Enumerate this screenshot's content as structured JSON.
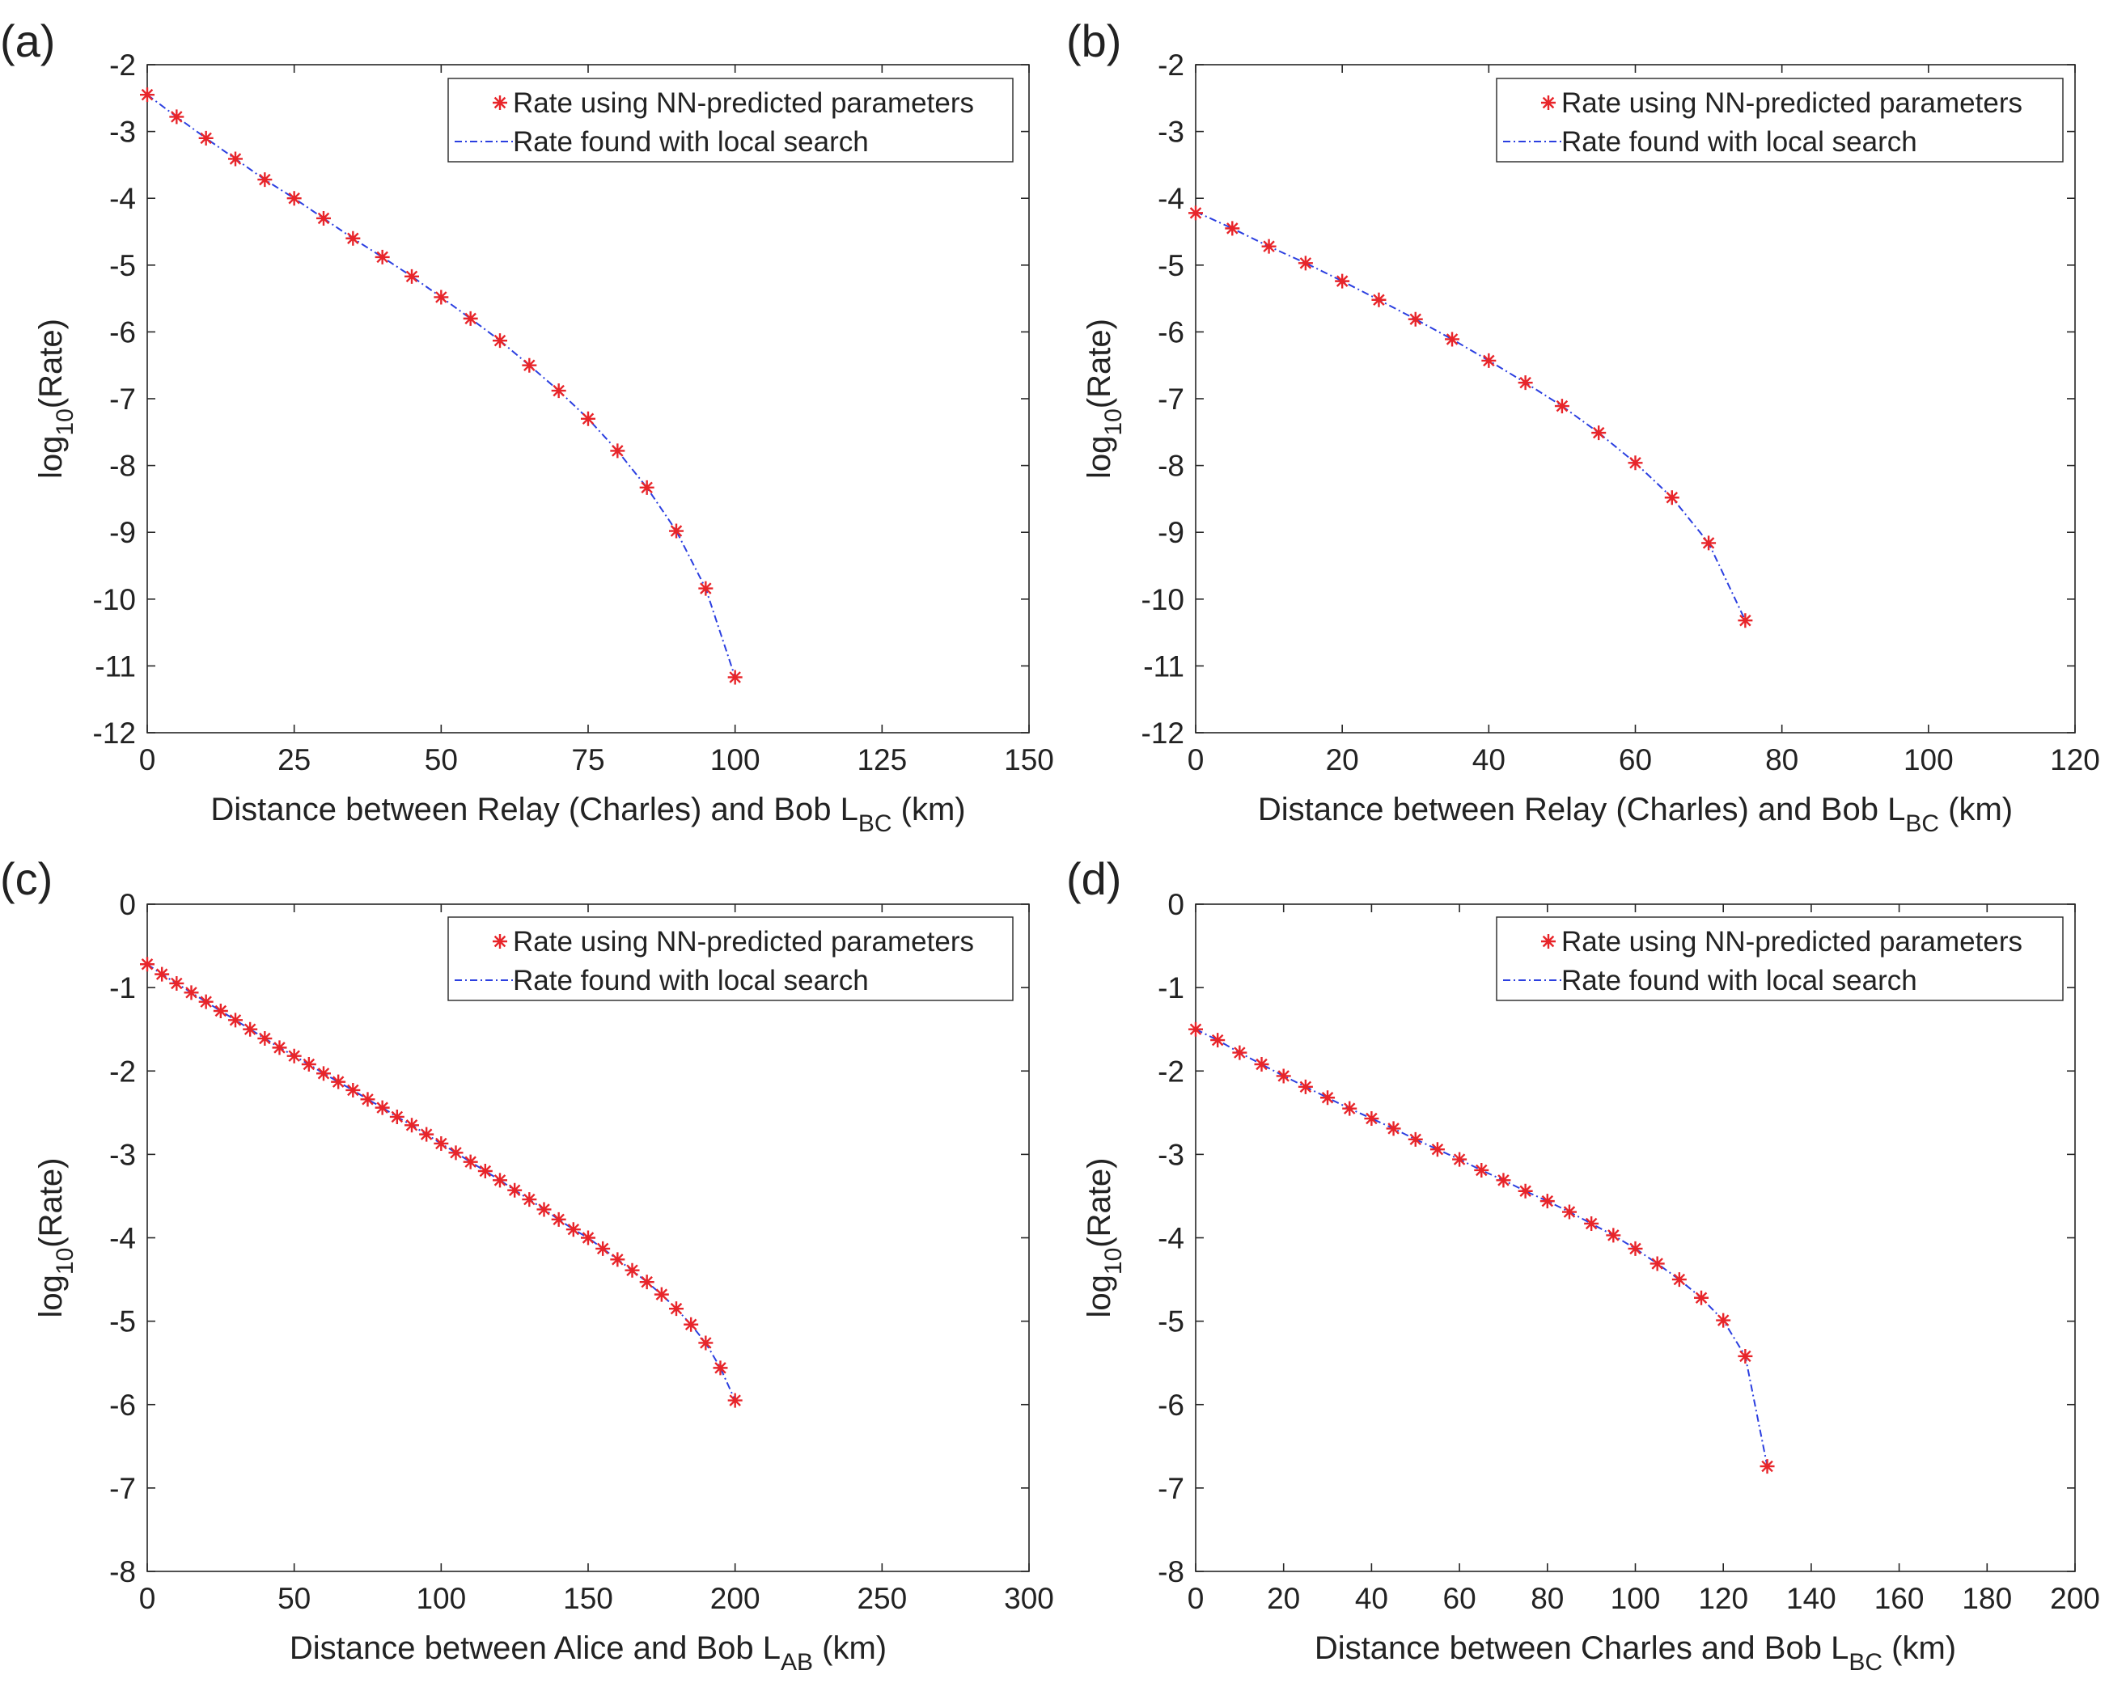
{
  "colors": {
    "nn_marker": "#e8252a",
    "local_line": "#2b3fe0",
    "axis": "#262626",
    "text": "#222222"
  },
  "chart_data": [
    {
      "type": "line",
      "panel": "(a)",
      "xlabel": "Distance between Relay (Charles) and Bob L",
      "xlabel_sub": "BC",
      "xlabel_unit": " (km)",
      "ylabel": "log",
      "ylabel_sub": "10",
      "ylabel_rest": "(Rate)",
      "xlim": [
        0,
        150
      ],
      "ylim": [
        -12,
        -2
      ],
      "xticks": [
        0,
        25,
        50,
        75,
        100,
        125,
        150
      ],
      "yticks": [
        -2,
        -3,
        -4,
        -5,
        -6,
        -7,
        -8,
        -9,
        -10,
        -11,
        -12
      ],
      "legend_position": "top-right",
      "series": [
        {
          "name": "Rate using NN-predicted parameters",
          "style": "marker-asterisk",
          "x": [
            0,
            5,
            10,
            15,
            20,
            25,
            30,
            35,
            40,
            45,
            50,
            55,
            60,
            65,
            70,
            75,
            80,
            85,
            90,
            95,
            100
          ],
          "y": [
            -2.45,
            -2.78,
            -3.1,
            -3.41,
            -3.72,
            -4.0,
            -4.3,
            -4.6,
            -4.88,
            -5.17,
            -5.48,
            -5.8,
            -6.13,
            -6.5,
            -6.88,
            -7.3,
            -7.78,
            -8.33,
            -8.98,
            -9.84,
            -11.17
          ]
        },
        {
          "name": "Rate found with local search",
          "style": "dash-dot-line",
          "x": [
            0,
            5,
            10,
            15,
            20,
            25,
            30,
            35,
            40,
            45,
            50,
            55,
            60,
            65,
            70,
            75,
            80,
            85,
            90,
            95,
            100
          ],
          "y": [
            -2.45,
            -2.78,
            -3.1,
            -3.41,
            -3.72,
            -4.0,
            -4.3,
            -4.6,
            -4.88,
            -5.17,
            -5.48,
            -5.8,
            -6.13,
            -6.5,
            -6.88,
            -7.3,
            -7.78,
            -8.33,
            -8.98,
            -9.84,
            -11.17
          ]
        }
      ]
    },
    {
      "type": "line",
      "panel": "(b)",
      "xlabel": "Distance between Relay (Charles) and Bob L",
      "xlabel_sub": "BC",
      "xlabel_unit": " (km)",
      "ylabel": "log",
      "ylabel_sub": "10",
      "ylabel_rest": "(Rate)",
      "xlim": [
        0,
        120
      ],
      "ylim": [
        -12,
        -2
      ],
      "xticks": [
        0,
        20,
        40,
        60,
        80,
        100,
        120
      ],
      "yticks": [
        -2,
        -3,
        -4,
        -5,
        -6,
        -7,
        -8,
        -9,
        -10,
        -11,
        -12
      ],
      "legend_position": "top-right",
      "series": [
        {
          "name": "Rate using NN-predicted parameters",
          "style": "marker-asterisk",
          "x": [
            0,
            5,
            10,
            15,
            20,
            25,
            30,
            35,
            40,
            45,
            50,
            55,
            60,
            65,
            70,
            75
          ],
          "y": [
            -4.22,
            -4.45,
            -4.72,
            -4.97,
            -5.24,
            -5.52,
            -5.81,
            -6.11,
            -6.43,
            -6.76,
            -7.11,
            -7.51,
            -7.96,
            -8.48,
            -9.16,
            -10.32
          ]
        },
        {
          "name": "Rate found with local search",
          "style": "dash-dot-line",
          "x": [
            0,
            5,
            10,
            15,
            20,
            25,
            30,
            35,
            40,
            45,
            50,
            55,
            60,
            65,
            70,
            75
          ],
          "y": [
            -4.2,
            -4.45,
            -4.72,
            -4.97,
            -5.24,
            -5.52,
            -5.81,
            -6.11,
            -6.43,
            -6.76,
            -7.11,
            -7.51,
            -7.96,
            -8.48,
            -9.16,
            -10.32
          ]
        }
      ]
    },
    {
      "type": "line",
      "panel": "(c)",
      "xlabel": "Distance between Alice and Bob L",
      "xlabel_sub": "AB",
      "xlabel_unit": " (km)",
      "ylabel": "log",
      "ylabel_sub": "10",
      "ylabel_rest": "(Rate)",
      "xlim": [
        0,
        300
      ],
      "ylim": [
        -8,
        0
      ],
      "xticks": [
        0,
        50,
        100,
        150,
        200,
        250,
        300
      ],
      "yticks": [
        0,
        -1,
        -2,
        -3,
        -4,
        -5,
        -6,
        -7,
        -8
      ],
      "legend_position": "top-right",
      "series": [
        {
          "name": "Rate using NN-predicted parameters",
          "style": "marker-asterisk",
          "x": [
            0,
            5,
            10,
            15,
            20,
            25,
            30,
            35,
            40,
            45,
            50,
            55,
            60,
            65,
            70,
            75,
            80,
            85,
            90,
            95,
            100,
            105,
            110,
            115,
            120,
            125,
            130,
            135,
            140,
            145,
            150,
            155,
            160,
            165,
            170,
            175,
            180,
            185,
            190,
            195,
            200
          ],
          "y": [
            -0.72,
            -0.84,
            -0.95,
            -1.06,
            -1.17,
            -1.28,
            -1.39,
            -1.5,
            -1.61,
            -1.72,
            -1.82,
            -1.92,
            -2.03,
            -2.13,
            -2.23,
            -2.34,
            -2.44,
            -2.55,
            -2.65,
            -2.76,
            -2.87,
            -2.98,
            -3.09,
            -3.2,
            -3.31,
            -3.43,
            -3.54,
            -3.66,
            -3.78,
            -3.9,
            -4.0,
            -4.13,
            -4.26,
            -4.39,
            -4.53,
            -4.68,
            -4.85,
            -5.04,
            -5.26,
            -5.56,
            -5.95
          ]
        },
        {
          "name": "Rate found with local search",
          "style": "dash-dot-line",
          "x": [
            0,
            5,
            10,
            15,
            20,
            25,
            30,
            35,
            40,
            45,
            50,
            55,
            60,
            65,
            70,
            75,
            80,
            85,
            90,
            95,
            100,
            105,
            110,
            115,
            120,
            125,
            130,
            135,
            140,
            145,
            150,
            155,
            160,
            165,
            170,
            175,
            180,
            185,
            190,
            195,
            200
          ],
          "y": [
            -0.72,
            -0.84,
            -0.95,
            -1.06,
            -1.17,
            -1.28,
            -1.39,
            -1.5,
            -1.61,
            -1.72,
            -1.82,
            -1.92,
            -2.03,
            -2.13,
            -2.23,
            -2.34,
            -2.44,
            -2.55,
            -2.65,
            -2.76,
            -2.87,
            -2.98,
            -3.09,
            -3.2,
            -3.31,
            -3.43,
            -3.54,
            -3.66,
            -3.78,
            -3.9,
            -4.0,
            -4.13,
            -4.26,
            -4.39,
            -4.53,
            -4.68,
            -4.85,
            -5.04,
            -5.26,
            -5.56,
            -5.95
          ]
        }
      ]
    },
    {
      "type": "line",
      "panel": "(d)",
      "xlabel": "Distance between Charles and Bob L",
      "xlabel_sub": "BC",
      "xlabel_unit": " (km)",
      "ylabel": "log",
      "ylabel_sub": "10",
      "ylabel_rest": "(Rate)",
      "xlim": [
        0,
        200
      ],
      "ylim": [
        -8,
        0
      ],
      "xticks": [
        0,
        20,
        40,
        60,
        80,
        100,
        120,
        140,
        160,
        180,
        200
      ],
      "yticks": [
        0,
        -1,
        -2,
        -3,
        -4,
        -5,
        -6,
        -7,
        -8
      ],
      "legend_position": "top-right",
      "series": [
        {
          "name": "Rate using NN-predicted parameters",
          "style": "marker-asterisk",
          "x": [
            0,
            5,
            10,
            15,
            20,
            25,
            30,
            35,
            40,
            45,
            50,
            55,
            60,
            65,
            70,
            75,
            80,
            85,
            90,
            95,
            100,
            105,
            110,
            115,
            120,
            125,
            130
          ],
          "y": [
            -1.5,
            -1.63,
            -1.78,
            -1.92,
            -2.06,
            -2.19,
            -2.32,
            -2.45,
            -2.57,
            -2.69,
            -2.82,
            -2.94,
            -3.06,
            -3.19,
            -3.31,
            -3.44,
            -3.56,
            -3.69,
            -3.83,
            -3.97,
            -4.13,
            -4.31,
            -4.5,
            -4.72,
            -4.99,
            -5.42,
            -6.74
          ]
        },
        {
          "name": "Rate found with local search",
          "style": "dash-dot-line",
          "x": [
            0,
            5,
            10,
            15,
            20,
            25,
            30,
            35,
            40,
            45,
            50,
            55,
            60,
            65,
            70,
            75,
            80,
            85,
            90,
            95,
            100,
            105,
            110,
            115,
            120,
            125,
            130
          ],
          "y": [
            -1.5,
            -1.63,
            -1.78,
            -1.92,
            -2.06,
            -2.19,
            -2.32,
            -2.45,
            -2.57,
            -2.69,
            -2.82,
            -2.94,
            -3.06,
            -3.19,
            -3.31,
            -3.44,
            -3.56,
            -3.69,
            -3.83,
            -3.97,
            -4.13,
            -4.31,
            -4.5,
            -4.72,
            -4.99,
            -5.42,
            -6.74
          ]
        }
      ]
    }
  ]
}
